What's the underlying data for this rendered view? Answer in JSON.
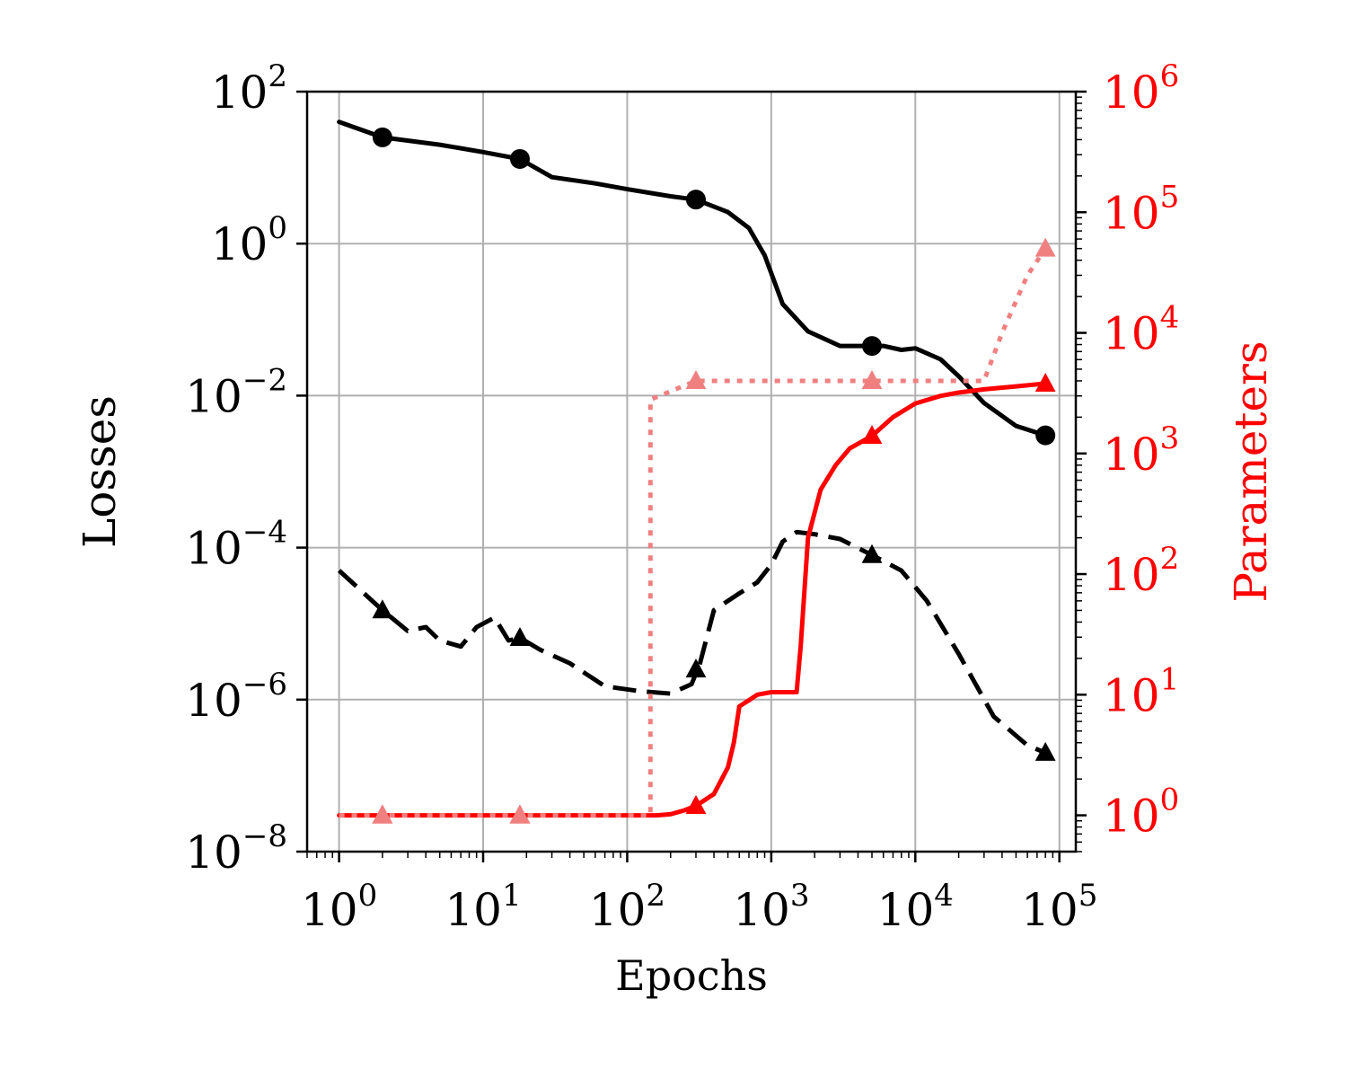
{
  "chart_data": {
    "type": "line",
    "xlabel": "Epochs",
    "ylabel_left": "Losses",
    "ylabel_right": "Parameters",
    "xscale": "log",
    "yscale_left": "log",
    "yscale_right": "log",
    "xlim": [
      0.6,
      130000
    ],
    "ylim_left": [
      1e-08,
      100
    ],
    "ylim_right": [
      0.5,
      1000000
    ],
    "grid": true,
    "colors": {
      "black": "#000000",
      "red": "#ff0000",
      "pink": "#f08080",
      "grid": "#b0b0b0"
    },
    "x_ticks": [
      {
        "value": 1,
        "base": "10",
        "exp": "0"
      },
      {
        "value": 10,
        "base": "10",
        "exp": "1"
      },
      {
        "value": 100,
        "base": "10",
        "exp": "2"
      },
      {
        "value": 1000,
        "base": "10",
        "exp": "3"
      },
      {
        "value": 10000,
        "base": "10",
        "exp": "4"
      },
      {
        "value": 100000,
        "base": "10",
        "exp": "5"
      }
    ],
    "y_left_ticks": [
      {
        "value": 100,
        "base": "10",
        "exp": "2"
      },
      {
        "value": 1,
        "base": "10",
        "exp": "0"
      },
      {
        "value": 0.01,
        "base": "10",
        "exp": "−2"
      },
      {
        "value": 0.0001,
        "base": "10",
        "exp": "−4"
      },
      {
        "value": 1e-06,
        "base": "10",
        "exp": "−6"
      },
      {
        "value": 1e-08,
        "base": "10",
        "exp": "−8"
      }
    ],
    "y_right_ticks": [
      {
        "value": 1000000,
        "base": "10",
        "exp": "6"
      },
      {
        "value": 100000,
        "base": "10",
        "exp": "5"
      },
      {
        "value": 10000,
        "base": "10",
        "exp": "4"
      },
      {
        "value": 1000,
        "base": "10",
        "exp": "3"
      },
      {
        "value": 100,
        "base": "10",
        "exp": "2"
      },
      {
        "value": 10,
        "base": "10",
        "exp": "1"
      },
      {
        "value": 1,
        "base": "10",
        "exp": "0"
      }
    ],
    "series": [
      {
        "axis": "left",
        "color": "#000000",
        "style": "solid",
        "marker": "circle",
        "x": [
          1,
          2,
          5,
          10,
          18,
          30,
          60,
          100,
          200,
          300,
          500,
          700,
          900,
          1200,
          1800,
          3000,
          4000,
          5000,
          6000,
          8000,
          10000,
          15000,
          20000,
          30000,
          50000,
          80000
        ],
        "y": [
          40,
          25,
          20,
          16,
          13,
          7.5,
          6.2,
          5.2,
          4.2,
          3.8,
          2.6,
          1.6,
          0.7,
          0.16,
          0.07,
          0.045,
          0.045,
          0.045,
          0.045,
          0.04,
          0.042,
          0.03,
          0.018,
          0.008,
          0.004,
          0.003
        ],
        "markers_x": [
          2,
          18,
          300,
          5000,
          80000
        ],
        "markers_y": [
          25,
          13,
          3.8,
          0.045,
          0.003
        ]
      },
      {
        "axis": "left",
        "color": "#000000",
        "style": "dashed",
        "marker": "triangle",
        "x": [
          1,
          2,
          3,
          4,
          5,
          7,
          9,
          12,
          15,
          18,
          25,
          40,
          70,
          120,
          200,
          280,
          320,
          400,
          600,
          800,
          1000,
          1200,
          1500,
          2000,
          3000,
          5000,
          8000,
          12000,
          20000,
          35000,
          60000,
          80000
        ],
        "y": [
          5e-05,
          1.5e-05,
          8e-06,
          9e-06,
          6e-06,
          5e-06,
          9e-06,
          1.2e-05,
          6e-06,
          6.5e-06,
          4.5e-06,
          3e-06,
          1.5e-06,
          1.3e-06,
          1.2e-06,
          1.6e-06,
          3e-06,
          1.5e-05,
          2.5e-05,
          3.5e-05,
          6e-05,
          0.00012,
          0.00016,
          0.00015,
          0.00013,
          8e-05,
          5e-05,
          2e-05,
          4e-06,
          6e-07,
          2.5e-07,
          2e-07
        ],
        "markers_x": [
          2,
          18,
          300,
          5000,
          80000
        ],
        "markers_y": [
          1.5e-05,
          6.5e-06,
          2.5e-06,
          8e-05,
          2e-07
        ]
      },
      {
        "axis": "right",
        "color": "#ff0000",
        "style": "solid",
        "marker": "triangle",
        "x": [
          1,
          2,
          18,
          100,
          160,
          200,
          250,
          300,
          400,
          500,
          550,
          600,
          700,
          800,
          1000,
          1500,
          1600,
          1800,
          2200,
          2800,
          3500,
          5000,
          7000,
          10000,
          15000,
          20000,
          30000,
          50000,
          80000
        ],
        "y": [
          1,
          1,
          1,
          1,
          1,
          1.02,
          1.1,
          1.2,
          1.5,
          2.5,
          4,
          8,
          9,
          10,
          10.5,
          10.5,
          25,
          200,
          500,
          800,
          1100,
          1400,
          2000,
          2600,
          3000,
          3200,
          3400,
          3600,
          3800
        ],
        "markers_x": [
          2,
          18,
          300,
          5000,
          80000
        ],
        "markers_y": [
          1,
          1,
          1.2,
          1400,
          3800
        ]
      },
      {
        "axis": "right",
        "color": "#f08080",
        "style": "dotted",
        "marker": "triangle",
        "x": [
          1,
          2,
          18,
          100,
          145,
          145,
          300,
          1000,
          5000,
          10000,
          20000,
          30000,
          40000,
          60000,
          80000
        ],
        "y": [
          1,
          1,
          1,
          1,
          1,
          2800,
          4000,
          4000,
          4000,
          4000,
          4000,
          4000,
          10000,
          30000,
          50000
        ],
        "markers_x": [
          2,
          18,
          300,
          5000,
          80000
        ],
        "markers_y": [
          1,
          1,
          4000,
          4000,
          50000
        ]
      }
    ]
  }
}
